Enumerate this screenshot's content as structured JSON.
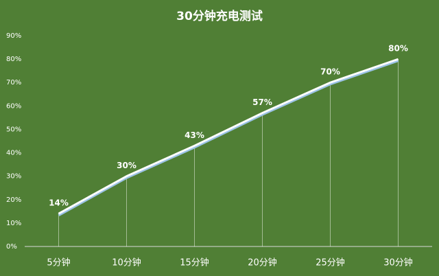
{
  "chart_data": {
    "type": "line",
    "title": "30分钟充电测试",
    "categories": [
      "5分钟",
      "10分钟",
      "15分钟",
      "20分钟",
      "25分钟",
      "30分钟"
    ],
    "values": [
      14,
      30,
      43,
      57,
      70,
      80
    ],
    "value_labels": [
      "14%",
      "30%",
      "43%",
      "57%",
      "70%",
      "80%"
    ],
    "color": "#ffffff",
    "ylim": [
      0,
      90
    ],
    "yticks": [
      {
        "value": 0,
        "label": "0%"
      },
      {
        "value": 10,
        "label": "10%"
      },
      {
        "value": 20,
        "label": "20%"
      },
      {
        "value": 30,
        "label": "30%"
      },
      {
        "value": 40,
        "label": "40%"
      },
      {
        "value": 50,
        "label": "50%"
      },
      {
        "value": 60,
        "label": "60%"
      },
      {
        "value": 70,
        "label": "70%"
      },
      {
        "value": 80,
        "label": "80%"
      },
      {
        "value": 90,
        "label": "90%"
      }
    ],
    "grid": false
  }
}
